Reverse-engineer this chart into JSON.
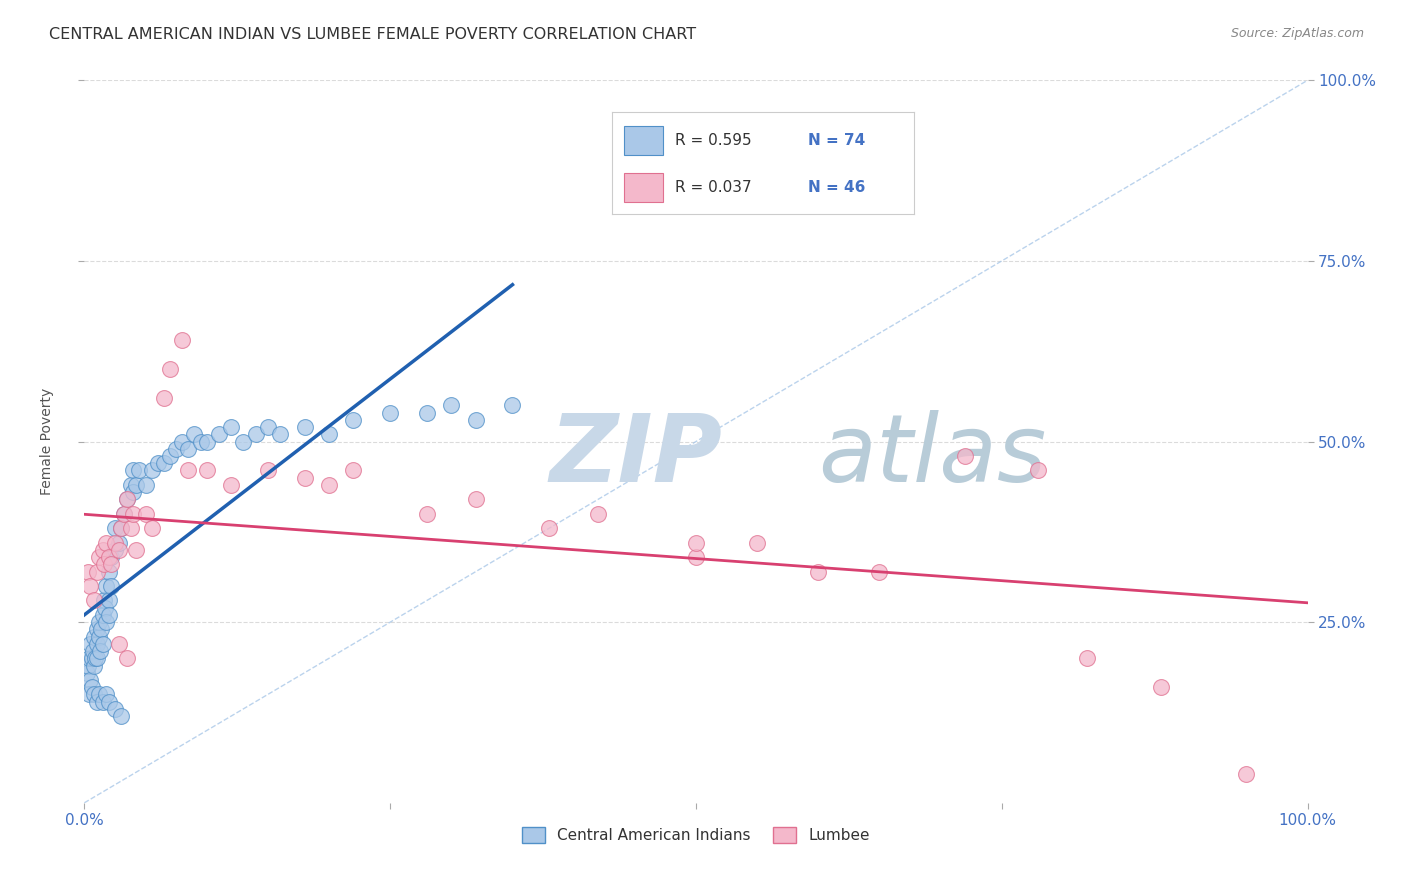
{
  "title": "CENTRAL AMERICAN INDIAN VS LUMBEE FEMALE POVERTY CORRELATION CHART",
  "source": "Source: ZipAtlas.com",
  "ylabel": "Female Poverty",
  "ytick_labels": [
    "100.0%",
    "75.0%",
    "50.0%",
    "25.0%"
  ],
  "ytick_positions": [
    1.0,
    0.75,
    0.5,
    0.25
  ],
  "legend_label_1": "Central American Indians",
  "legend_label_2": "Lumbee",
  "legend_r1": "R = 0.595",
  "legend_n1": "N = 74",
  "legend_r2": "R = 0.037",
  "legend_n2": "N = 46",
  "color_blue_fill": "#aac8e8",
  "color_blue_edge": "#5090c8",
  "color_pink_fill": "#f4b8cb",
  "color_pink_edge": "#e07090",
  "color_blue_line": "#2060b0",
  "color_pink_line": "#d84070",
  "color_diag": "#aac8e8",
  "color_grid": "#cccccc",
  "watermark_zip_color": "#c5d8ee",
  "watermark_atlas_color": "#b8c8d8",
  "background_color": "#ffffff",
  "blue_x": [
    0.002,
    0.003,
    0.004,
    0.005,
    0.005,
    0.006,
    0.007,
    0.008,
    0.008,
    0.009,
    0.01,
    0.01,
    0.01,
    0.012,
    0.012,
    0.013,
    0.014,
    0.015,
    0.015,
    0.016,
    0.017,
    0.018,
    0.018,
    0.02,
    0.02,
    0.02,
    0.022,
    0.022,
    0.025,
    0.025,
    0.028,
    0.03,
    0.032,
    0.035,
    0.038,
    0.04,
    0.04,
    0.042,
    0.045,
    0.05,
    0.055,
    0.06,
    0.065,
    0.07,
    0.075,
    0.08,
    0.085,
    0.09,
    0.095,
    0.1,
    0.11,
    0.12,
    0.13,
    0.14,
    0.15,
    0.16,
    0.18,
    0.2,
    0.22,
    0.25,
    0.28,
    0.3,
    0.32,
    0.35,
    0.004,
    0.006,
    0.008,
    0.01,
    0.012,
    0.015,
    0.018,
    0.02,
    0.025,
    0.03
  ],
  "blue_y": [
    0.18,
    0.19,
    0.2,
    0.17,
    0.22,
    0.2,
    0.21,
    0.19,
    0.23,
    0.2,
    0.22,
    0.24,
    0.2,
    0.23,
    0.25,
    0.21,
    0.24,
    0.22,
    0.26,
    0.28,
    0.27,
    0.3,
    0.25,
    0.32,
    0.28,
    0.26,
    0.34,
    0.3,
    0.35,
    0.38,
    0.36,
    0.38,
    0.4,
    0.42,
    0.44,
    0.43,
    0.46,
    0.44,
    0.46,
    0.44,
    0.46,
    0.47,
    0.47,
    0.48,
    0.49,
    0.5,
    0.49,
    0.51,
    0.5,
    0.5,
    0.51,
    0.52,
    0.5,
    0.51,
    0.52,
    0.51,
    0.52,
    0.51,
    0.53,
    0.54,
    0.54,
    0.55,
    0.53,
    0.55,
    0.15,
    0.16,
    0.15,
    0.14,
    0.15,
    0.14,
    0.15,
    0.14,
    0.13,
    0.12
  ],
  "pink_x": [
    0.003,
    0.005,
    0.008,
    0.01,
    0.012,
    0.015,
    0.016,
    0.018,
    0.02,
    0.022,
    0.025,
    0.028,
    0.03,
    0.032,
    0.035,
    0.038,
    0.04,
    0.042,
    0.05,
    0.055,
    0.065,
    0.07,
    0.08,
    0.085,
    0.1,
    0.12,
    0.15,
    0.18,
    0.2,
    0.22,
    0.28,
    0.32,
    0.38,
    0.42,
    0.5,
    0.55,
    0.6,
    0.65,
    0.72,
    0.78,
    0.82,
    0.88,
    0.95,
    0.5,
    0.028,
    0.035
  ],
  "pink_y": [
    0.32,
    0.3,
    0.28,
    0.32,
    0.34,
    0.35,
    0.33,
    0.36,
    0.34,
    0.33,
    0.36,
    0.35,
    0.38,
    0.4,
    0.42,
    0.38,
    0.4,
    0.35,
    0.4,
    0.38,
    0.56,
    0.6,
    0.64,
    0.46,
    0.46,
    0.44,
    0.46,
    0.45,
    0.44,
    0.46,
    0.4,
    0.42,
    0.38,
    0.4,
    0.34,
    0.36,
    0.32,
    0.32,
    0.48,
    0.46,
    0.2,
    0.16,
    0.04,
    0.36,
    0.22,
    0.2
  ]
}
